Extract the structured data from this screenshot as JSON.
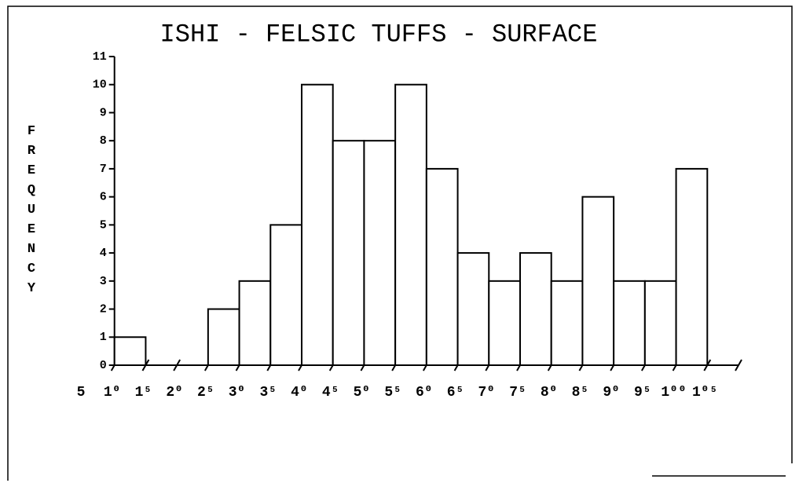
{
  "chart_data": {
    "type": "histogram",
    "title": "ISHI - FELSIC TUFFS - SURFACE",
    "y_label": "FREQUENCY",
    "bins": [
      10,
      15,
      20,
      25,
      30,
      35,
      40,
      45,
      50,
      55,
      60,
      65,
      70,
      75,
      80,
      85,
      90,
      95,
      100,
      105
    ],
    "values": [
      1,
      0,
      0,
      2,
      3,
      5,
      10,
      8,
      8,
      10,
      7,
      4,
      3,
      4,
      3,
      6,
      3,
      3,
      7
    ],
    "color": "#ffffff",
    "xlim": [
      5,
      110
    ],
    "ylim": [
      0,
      11
    ],
    "xticks": [
      {
        "value": 5,
        "label": "5"
      },
      {
        "value": 10,
        "label": "1⁰"
      },
      {
        "value": 15,
        "label": "1⁵"
      },
      {
        "value": 20,
        "label": "2⁰"
      },
      {
        "value": 25,
        "label": "2⁵"
      },
      {
        "value": 30,
        "label": "3⁰"
      },
      {
        "value": 35,
        "label": "3⁵"
      },
      {
        "value": 40,
        "label": "4⁰"
      },
      {
        "value": 45,
        "label": "4⁵"
      },
      {
        "value": 50,
        "label": "5⁰"
      },
      {
        "value": 55,
        "label": "5⁵"
      },
      {
        "value": 60,
        "label": "6⁰"
      },
      {
        "value": 65,
        "label": "6⁵"
      },
      {
        "value": 70,
        "label": "7⁰"
      },
      {
        "value": 75,
        "label": "7⁵"
      },
      {
        "value": 80,
        "label": "8⁰"
      },
      {
        "value": 85,
        "label": "8⁵"
      },
      {
        "value": 90,
        "label": "9⁰"
      },
      {
        "value": 95,
        "label": "9⁵"
      },
      {
        "value": 100,
        "label": "1⁰⁰"
      },
      {
        "value": 105,
        "label": "1⁰⁵"
      },
      {
        "value": 110,
        "label": null
      }
    ],
    "yticks": [
      0,
      1,
      2,
      3,
      4,
      5,
      6,
      7,
      8,
      9,
      10,
      11
    ]
  }
}
